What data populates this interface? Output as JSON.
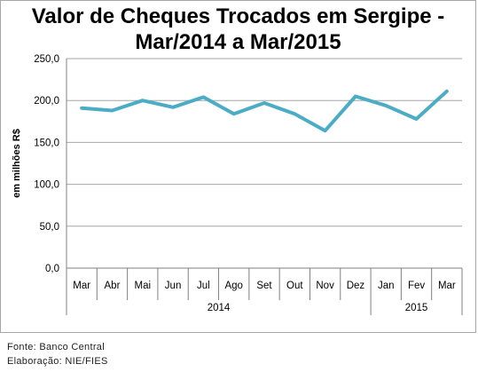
{
  "chart_data": {
    "type": "line",
    "title_lines": [
      "Valor de Cheques Trocados em Sergipe -",
      "Mar/2014 a Mar/2015"
    ],
    "ylabel": "em milhões R$",
    "xlabel": "",
    "ylim": [
      0,
      250
    ],
    "yticks": [
      "0,0",
      "50,0",
      "100,0",
      "150,0",
      "200,0",
      "250,0"
    ],
    "ytick_values": [
      0,
      50,
      100,
      150,
      200,
      250
    ],
    "grid": true,
    "categories": [
      "Mar",
      "Abr",
      "Mai",
      "Jun",
      "Jul",
      "Ago",
      "Set",
      "Out",
      "Nov",
      "Dez",
      "Jan",
      "Fev",
      "Mar"
    ],
    "year_groups": [
      {
        "label": "2014",
        "start": 0,
        "end": 9
      },
      {
        "label": "2015",
        "start": 10,
        "end": 12
      }
    ],
    "series": [
      {
        "values": [
          191,
          188,
          200,
          192,
          204,
          184,
          197,
          184,
          164,
          205,
          194,
          178,
          211
        ],
        "color": "#4bacc6"
      }
    ]
  },
  "footer": {
    "source": "Fonte: Banco Central",
    "credit": "Elaboração: NIE/FIES"
  }
}
